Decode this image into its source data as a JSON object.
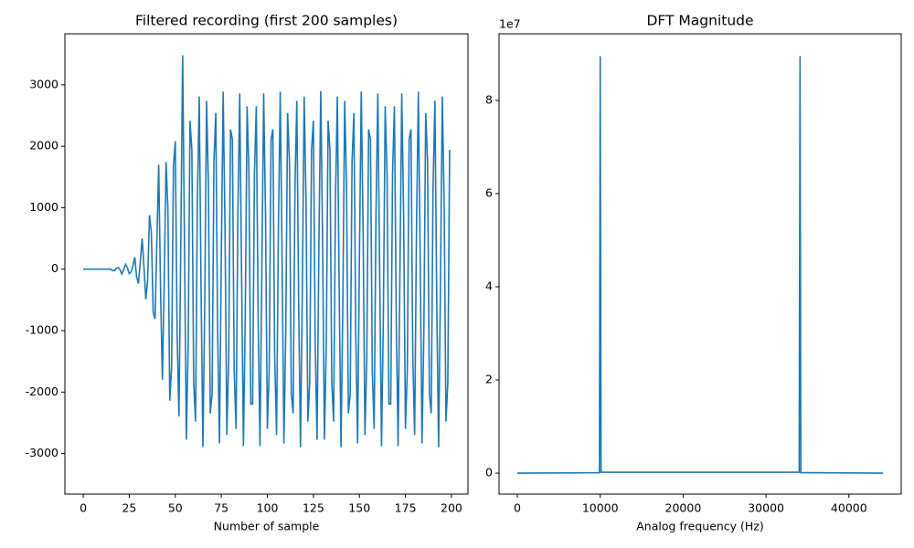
{
  "chart_data": [
    {
      "type": "line",
      "title": "Filtered recording (first 200 samples)",
      "xlabel": "Number of sample",
      "color": "#1f77b4",
      "x": [
        0,
        1,
        2,
        3,
        4,
        5,
        6,
        7,
        8,
        9,
        10,
        11,
        12,
        13,
        14,
        15,
        16,
        17,
        18,
        19,
        20,
        21,
        22,
        23,
        24,
        25,
        26,
        27,
        28,
        29,
        30,
        31,
        32,
        33,
        34,
        35,
        36,
        37,
        38,
        39,
        40,
        41,
        42,
        43,
        44,
        45,
        46,
        47,
        48,
        49,
        50,
        51,
        52,
        53,
        54,
        55,
        56,
        57,
        58,
        59,
        60,
        61,
        62,
        63,
        64,
        65,
        66,
        67,
        68,
        69,
        70,
        71,
        72,
        73,
        74,
        75,
        76,
        77,
        78,
        79,
        80,
        81,
        82,
        83,
        84,
        85,
        86,
        87,
        88,
        89,
        90,
        91,
        92,
        93,
        94,
        95,
        96,
        97,
        98,
        99,
        100,
        101,
        102,
        103,
        104,
        105,
        106,
        107,
        108,
        109,
        110,
        111,
        112,
        113,
        114,
        115,
        116,
        117,
        118,
        119,
        120,
        121,
        122,
        123,
        124,
        125,
        126,
        127,
        128,
        129,
        130,
        131,
        132,
        133,
        134,
        135,
        136,
        137,
        138,
        139,
        140,
        141,
        142,
        143,
        144,
        145,
        146,
        147,
        148,
        149,
        150,
        151,
        152,
        153,
        154,
        155,
        156,
        157,
        158,
        159,
        160,
        161,
        162,
        163,
        164,
        165,
        166,
        167,
        168,
        169,
        170,
        171,
        172,
        173,
        174,
        175,
        176,
        177,
        178,
        179,
        180,
        181,
        182,
        183,
        184,
        185,
        186,
        187,
        188,
        189,
        190,
        191,
        192,
        193,
        194,
        195,
        196,
        197,
        198,
        199
      ],
      "values": [
        0,
        0,
        0,
        0,
        0,
        0,
        0,
        0,
        0,
        0,
        0,
        0,
        0,
        0,
        0,
        0,
        -23,
        -23,
        16,
        27,
        -8,
        -79,
        -2,
        79,
        25,
        -72,
        -46,
        58,
        196,
        -125,
        -233,
        114,
        498,
        32,
        -489,
        -175,
        876,
        605,
        -700,
        -809,
        463,
        1699,
        -337,
        -1798,
        -189,
        1744,
        970,
        -2138,
        -1595,
        1673,
        2083,
        -1065,
        -2393,
        423,
        3480,
        423,
        -2775,
        -1235,
        2416,
        1940,
        -1850,
        -2480,
        1125,
        2810,
        -305,
        -2897,
        -542,
        2738,
        1343,
        -2346,
        -2030,
        1755,
        2540,
        -1012,
        -2836,
        183,
        2888,
        661,
        -2697,
        -1450,
        2274,
        2114,
        -1656,
        -2598,
        896,
        2859,
        -61,
        -2877,
        -780,
        2651,
        1554,
        -2195,
        -2195,
        1554,
        2651,
        -780,
        -2877,
        -61,
        2859,
        896,
        -2598,
        -1656,
        2114,
        2274,
        -1450,
        -2697,
        661,
        2888,
        183,
        -2836,
        -1012,
        2540,
        1755,
        -2030,
        -2346,
        1343,
        2738,
        -542,
        -2897,
        -305,
        2810,
        1125,
        -2480,
        -1850,
        1940,
        2416,
        -1235,
        -2775,
        423,
        2900,
        423,
        -2775,
        -1235,
        2416,
        1940,
        -1850,
        -2480,
        1125,
        2810,
        -305,
        -2897,
        -542,
        2738,
        1343,
        -2346,
        -2030,
        1755,
        2540,
        -1012,
        -2836,
        183,
        2888,
        661,
        -2697,
        -1450,
        2274,
        2114,
        -1656,
        -2598,
        896,
        2859,
        -61,
        -2877,
        -780,
        2651,
        1554,
        -2195,
        -2195,
        1554,
        2651,
        -780,
        -2877,
        -61,
        2859,
        896,
        -2598,
        -1656,
        2114,
        2274,
        -1450,
        -2697,
        661,
        2888,
        183,
        -2836,
        -1012,
        2540,
        1755,
        -2030,
        -2346,
        1343,
        2738,
        -542,
        -2897,
        -305,
        2810,
        1125,
        -2480,
        -1850,
        1940
      ],
      "xlim": [
        -9.95,
        208.95
      ],
      "ylim": [
        -3660,
        3830
      ],
      "xticks": [
        0,
        25,
        50,
        75,
        100,
        125,
        150,
        175,
        200
      ],
      "yticks": [
        -3000,
        -2000,
        -1000,
        0,
        1000,
        2000,
        3000
      ]
    },
    {
      "type": "line",
      "title": "DFT Magnitude",
      "xlabel": "Analog frequency (Hz)",
      "color": "#1f77b4",
      "y_offset_label": "1e7",
      "x": [
        0,
        9900,
        10000,
        10100,
        34000,
        34100,
        34200,
        44100
      ],
      "values": [
        0,
        100000,
        89500000,
        200000,
        200000,
        89500000,
        100000,
        0
      ],
      "xlim": [
        -2205,
        46305
      ],
      "ylim": [
        -4500000,
        94300000
      ],
      "xticks": [
        0,
        10000,
        20000,
        30000,
        40000
      ],
      "yticks": [
        {
          "value": 0,
          "label": "0"
        },
        {
          "value": 20000000,
          "label": "2"
        },
        {
          "value": 40000000,
          "label": "4"
        },
        {
          "value": 60000000,
          "label": "6"
        },
        {
          "value": 80000000,
          "label": "8"
        }
      ]
    }
  ]
}
